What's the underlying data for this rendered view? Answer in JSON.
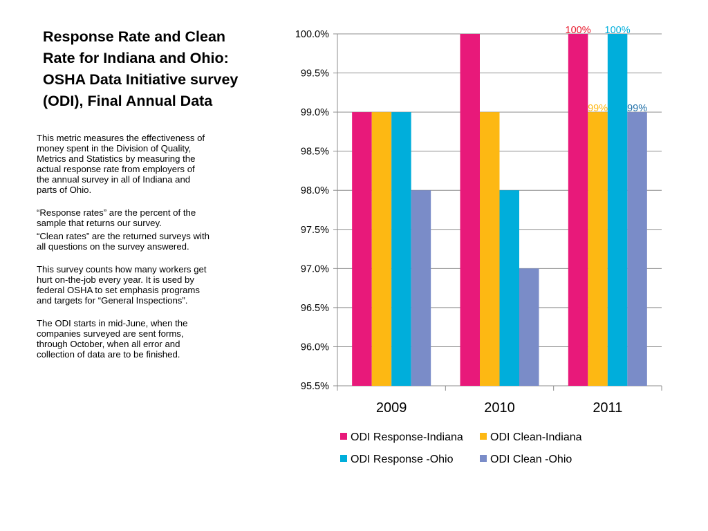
{
  "slide": {
    "title": "Response Rate and Clean Rate for Indiana and Ohio: OSHA Data Initiative survey (ODI),  Final Annual Data",
    "paragraphs": [
      "This metric measures  the effectiveness of money spent in the Division of Quality, Metrics and Statistics by measuring the actual response rate from employers of the annual survey in all of Indiana and parts of Ohio.",
      "“Response rates” are the percent of the sample that returns our survey.",
      "“Clean rates” are the returned surveys with all questions on the survey answered.",
      "This survey counts how many workers get hurt on-the-job every year. It is used by federal OSHA to set emphasis programs and targets for “General Inspections”.",
      "The ODI starts in mid-June, when the companies surveyed are sent forms, through October, when all error and collection of data are to be finished."
    ]
  },
  "chart_data": {
    "type": "bar",
    "categories": [
      "2009",
      "2010",
      "2011"
    ],
    "series": [
      {
        "name": "ODI Response-Indiana",
        "color": "#E8197A",
        "values": [
          99.0,
          100.0,
          100.0
        ]
      },
      {
        "name": "ODI Clean-Indiana",
        "color": "#FDB813",
        "values": [
          99.0,
          99.0,
          99.0
        ]
      },
      {
        "name": "ODI Response -Ohio",
        "color": "#00AEDB",
        "values": [
          99.0,
          98.0,
          100.0
        ]
      },
      {
        "name": "ODI Clean -Ohio",
        "color": "#7A8CC8",
        "values": [
          98.0,
          97.0,
          99.0
        ]
      }
    ],
    "ylim": [
      95.5,
      100.0
    ],
    "yticks": [
      "95.5%",
      "96.0%",
      "96.5%",
      "97.0%",
      "97.5%",
      "98.0%",
      "98.5%",
      "99.0%",
      "99.5%",
      "100.0%"
    ],
    "grid": true,
    "legend": "bottom",
    "data_labels": [
      {
        "category": "2011",
        "series": 0,
        "text": "100%",
        "color": "#E8192C"
      },
      {
        "category": "2011",
        "series": 1,
        "text": "99%",
        "color": "#FDB813"
      },
      {
        "category": "2011",
        "series": 2,
        "text": "100%",
        "color": "#00AEDB"
      },
      {
        "category": "2011",
        "series": 3,
        "text": "99%",
        "color": "#1F6FA8"
      }
    ]
  }
}
